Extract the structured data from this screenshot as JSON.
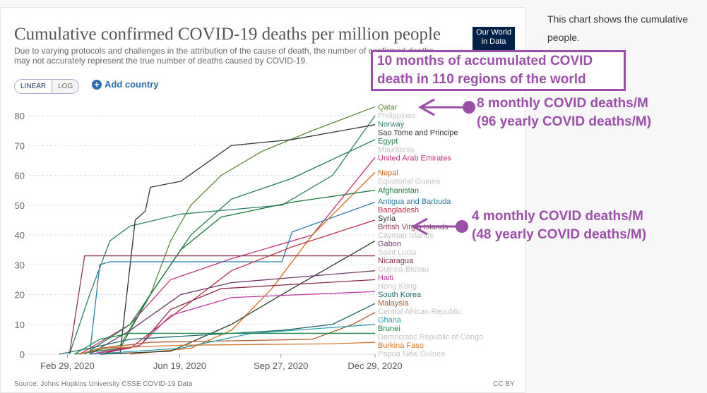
{
  "header": {
    "title": "Cumulative confirmed COVID-19 deaths per million people",
    "subtitle": "Due to varying protocols and challenges in the attribution of the cause of death, the number of confirmed deaths may not accurately represent the true number of deaths caused by COVID-19.",
    "logo": "Our World in Data"
  },
  "controls": {
    "linear": "LINEAR",
    "log": "LOG",
    "add_country": "Add country"
  },
  "footer": {
    "source": "Source: Johns Hopkins University CSSE COVID-19 Data",
    "license": "CC BY"
  },
  "side_text": {
    "line1": "This chart shows the cumulative",
    "line2": "people."
  },
  "annotations": {
    "box": "10 months of accumulated COVID death in 110 regions of the world",
    "a1_line1": "8 monthly COVID deaths/M",
    "a1_line2": "(96 yearly COVID deaths/M)",
    "a2_line1": "4 monthly COVID deaths/M",
    "a2_line2": "(48 yearly COVID deaths/M)",
    "color": "#9b4fa8"
  },
  "chart_data": {
    "type": "line",
    "title": "Cumulative confirmed COVID-19 deaths per million people",
    "xlabel": "",
    "ylabel": "",
    "ylim": [
      0,
      85
    ],
    "yticks": [
      0,
      10,
      20,
      30,
      40,
      50,
      60,
      70,
      80
    ],
    "x_start": "Jan 22, 2020",
    "x_end": "Dec 29, 2020",
    "x_unit": "days since Jan 22, 2020",
    "xlim": [
      0,
      342
    ],
    "xticks": [
      {
        "day": 38,
        "label": "Feb 29, 2020"
      },
      {
        "day": 149,
        "label": "Jun 19, 2020"
      },
      {
        "day": 249,
        "label": "Sep 27, 2020"
      },
      {
        "day": 342,
        "label": "Dec 29, 2020"
      }
    ],
    "grid": true,
    "series": [
      {
        "name": "Qatar",
        "color": "#5a8a3a",
        "points": [
          [
            50,
            0
          ],
          [
            90,
            3
          ],
          [
            120,
            20
          ],
          [
            140,
            38
          ],
          [
            160,
            50
          ],
          [
            190,
            60
          ],
          [
            230,
            68
          ],
          [
            280,
            75
          ],
          [
            342,
            83
          ]
        ]
      },
      {
        "name": "Norway",
        "color": "#2f7f6f",
        "points": [
          [
            40,
            0
          ],
          [
            60,
            20
          ],
          [
            80,
            38
          ],
          [
            100,
            43
          ],
          [
            150,
            47
          ],
          [
            250,
            50
          ],
          [
            300,
            60
          ],
          [
            342,
            80
          ]
        ]
      },
      {
        "name": "Sao Tome and Principe",
        "color": "#333",
        "points": [
          [
            90,
            0
          ],
          [
            100,
            30
          ],
          [
            105,
            45
          ],
          [
            115,
            48
          ],
          [
            120,
            56
          ],
          [
            150,
            58
          ],
          [
            200,
            70
          ],
          [
            260,
            72
          ],
          [
            342,
            77
          ]
        ]
      },
      {
        "name": "Egypt",
        "color": "#1f7a4a",
        "points": [
          [
            45,
            0
          ],
          [
            90,
            2
          ],
          [
            120,
            20
          ],
          [
            160,
            40
          ],
          [
            200,
            52
          ],
          [
            260,
            59
          ],
          [
            342,
            72
          ]
        ]
      },
      {
        "name": "United Arab Emirates",
        "color": "#c2307f",
        "points": [
          [
            50,
            0
          ],
          [
            100,
            10
          ],
          [
            140,
            25
          ],
          [
            200,
            32
          ],
          [
            280,
            40
          ],
          [
            342,
            66
          ]
        ]
      },
      {
        "name": "Nepal",
        "color": "#d36a1e",
        "points": [
          [
            100,
            0
          ],
          [
            160,
            2
          ],
          [
            200,
            8
          ],
          [
            240,
            22
          ],
          [
            280,
            40
          ],
          [
            342,
            61
          ]
        ]
      },
      {
        "name": "Afghanistan",
        "color": "#1a7a3a",
        "points": [
          [
            55,
            0
          ],
          [
            100,
            10
          ],
          [
            150,
            35
          ],
          [
            190,
            46
          ],
          [
            260,
            51
          ],
          [
            342,
            55
          ]
        ]
      },
      {
        "name": "Antigua and Barbuda",
        "color": "#2a7ca8",
        "points": [
          [
            60,
            0
          ],
          [
            70,
            30
          ],
          [
            80,
            31
          ],
          [
            250,
            31
          ],
          [
            260,
            41
          ],
          [
            342,
            51
          ]
        ]
      },
      {
        "name": "Bangladesh",
        "color": "#c0304a",
        "points": [
          [
            60,
            0
          ],
          [
            100,
            2
          ],
          [
            150,
            15
          ],
          [
            200,
            28
          ],
          [
            260,
            36
          ],
          [
            342,
            45
          ]
        ]
      },
      {
        "name": "Syria",
        "color": "#2a3a2a",
        "points": [
          [
            70,
            0
          ],
          [
            140,
            1
          ],
          [
            200,
            10
          ],
          [
            260,
            22
          ],
          [
            342,
            38
          ]
        ]
      },
      {
        "name": "British Virgin Islands",
        "color": "#8a3a4a",
        "points": [
          [
            40,
            0
          ],
          [
            55,
            33
          ],
          [
            342,
            33
          ]
        ]
      },
      {
        "name": "Gabon",
        "color": "#6a3a6a",
        "points": [
          [
            60,
            0
          ],
          [
            100,
            8
          ],
          [
            150,
            20
          ],
          [
            200,
            24
          ],
          [
            342,
            28
          ]
        ]
      },
      {
        "name": "Nicaragua",
        "color": "#8a2a4a",
        "points": [
          [
            70,
            0
          ],
          [
            110,
            3
          ],
          [
            140,
            15
          ],
          [
            190,
            22
          ],
          [
            342,
            25
          ]
        ]
      },
      {
        "name": "Haiti",
        "color": "#c23aa0",
        "points": [
          [
            60,
            0
          ],
          [
            110,
            3
          ],
          [
            140,
            13
          ],
          [
            200,
            19
          ],
          [
            342,
            21
          ]
        ]
      },
      {
        "name": "South Korea",
        "color": "#1f6a6a",
        "points": [
          [
            30,
            0
          ],
          [
            60,
            2
          ],
          [
            100,
            5
          ],
          [
            250,
            8
          ],
          [
            300,
            10
          ],
          [
            342,
            17
          ]
        ]
      },
      {
        "name": "Malaysia",
        "color": "#b0582a",
        "points": [
          [
            50,
            0
          ],
          [
            70,
            2
          ],
          [
            120,
            4
          ],
          [
            280,
            5
          ],
          [
            320,
            10
          ],
          [
            342,
            14
          ]
        ]
      },
      {
        "name": "Ghana",
        "color": "#2aa0b0",
        "points": [
          [
            60,
            0
          ],
          [
            150,
            2
          ],
          [
            220,
            7
          ],
          [
            342,
            10
          ]
        ]
      },
      {
        "name": "Brunei",
        "color": "#1a8a4a",
        "points": [
          [
            45,
            0
          ],
          [
            70,
            5
          ],
          [
            100,
            7
          ],
          [
            342,
            7
          ]
        ]
      },
      {
        "name": "Burkina Faso",
        "color": "#d07a2a",
        "points": [
          [
            50,
            0
          ],
          [
            70,
            2
          ],
          [
            150,
            3
          ],
          [
            300,
            3.5
          ],
          [
            342,
            4
          ]
        ]
      }
    ],
    "faded_labels": [
      "Philippines",
      "Mauritania",
      "Equatorial Guinea",
      "Cayman Islands",
      "Saint Lucia",
      "Guinea-Bissau",
      "Hong Kong",
      "Central African Republic",
      "Democratic Republic of Congo",
      "Papua New Guinea"
    ]
  }
}
